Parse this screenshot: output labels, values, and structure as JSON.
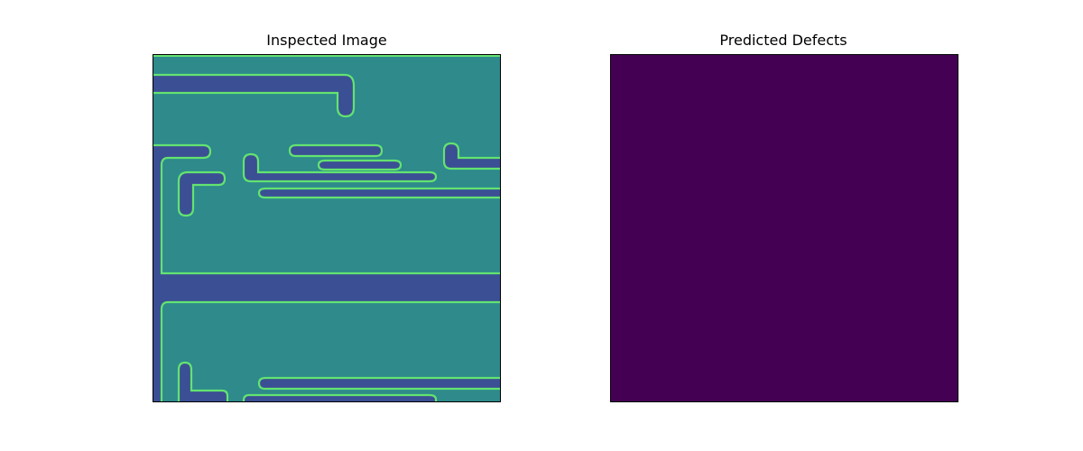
{
  "figure": {
    "background": "#ffffff",
    "panels": [
      {
        "title": "Inspected Image",
        "content": "greyscale-scan rendered with viridis colormap",
        "colors": {
          "background": "#2e8a8b",
          "trench": "#3b4f94",
          "edge": "#63e370"
        }
      },
      {
        "title": "Predicted Defects",
        "content": "empty defect mask",
        "colors": {
          "fill": "#440154"
        }
      }
    ]
  }
}
